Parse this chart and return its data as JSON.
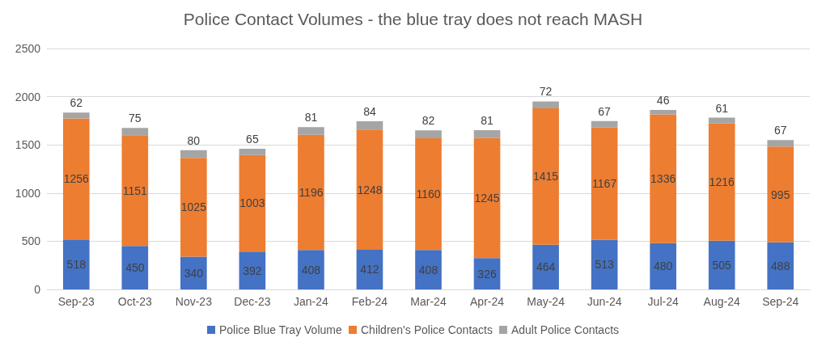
{
  "chart_data": {
    "type": "bar",
    "title": "Police Contact Volumes - the blue tray does not reach MASH",
    "categories": [
      "Sep-23",
      "Oct-23",
      "Nov-23",
      "Dec-23",
      "Jan-24",
      "Feb-24",
      "Mar-24",
      "Apr-24",
      "May-24",
      "Jun-24",
      "Jul-24",
      "Aug-24",
      "Sep-24"
    ],
    "series": [
      {
        "name": "Police Blue Tray Volume",
        "color": "#4472c4",
        "values": [
          518,
          450,
          340,
          392,
          408,
          412,
          408,
          326,
          464,
          513,
          480,
          505,
          488
        ]
      },
      {
        "name": "Children's Police Contacts",
        "color": "#ed7d31",
        "values": [
          1256,
          1151,
          1025,
          1003,
          1196,
          1248,
          1160,
          1245,
          1415,
          1167,
          1336,
          1216,
          995
        ]
      },
      {
        "name": "Adult Police Contacts",
        "color": "#a5a5a5",
        "values": [
          62,
          75,
          80,
          65,
          81,
          84,
          82,
          81,
          72,
          67,
          46,
          61,
          67
        ]
      }
    ],
    "stacked": true,
    "data_labels": true,
    "ylim": [
      0,
      2500
    ],
    "yticks": [
      0,
      500,
      1000,
      1500,
      2000,
      2500
    ],
    "grid": "y",
    "legend": "bottom"
  }
}
